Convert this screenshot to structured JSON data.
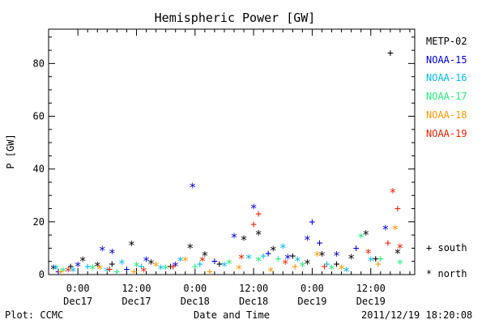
{
  "chart_data": {
    "type": "scatter",
    "title": "Hemispheric Power [GW]",
    "xlabel": "Date and Time",
    "ylabel": "P [GW]",
    "xlim": [
      "2011-12-16 18:00",
      "2011-12-19 21:00"
    ],
    "ylim": [
      0,
      93
    ],
    "y_ticks": [
      0,
      20,
      40,
      60,
      80
    ],
    "x_ticks": [
      {
        "time": "2011-12-17 00:00",
        "top": "0:00",
        "bottom": "Dec17"
      },
      {
        "time": "2011-12-17 12:00",
        "top": "12:00",
        "bottom": "Dec17"
      },
      {
        "time": "2011-12-18 00:00",
        "top": "0:00",
        "bottom": "Dec18"
      },
      {
        "time": "2011-12-18 12:00",
        "top": "12:00",
        "bottom": "Dec18"
      },
      {
        "time": "2011-12-19 00:00",
        "top": "0:00",
        "bottom": "Dec19"
      },
      {
        "time": "2011-12-19 12:00",
        "top": "12:00",
        "bottom": "Dec19"
      }
    ],
    "grid": false,
    "legend_position": "right",
    "marker_legend": [
      {
        "marker": "+",
        "label": "south"
      },
      {
        "marker": "*",
        "label": "north"
      }
    ],
    "series": [
      {
        "name": "METP-02",
        "color": "#000000",
        "points": [
          {
            "x": "2011-12-16 19:00",
            "y": 2,
            "marker": "*"
          },
          {
            "x": "2011-12-16 22:30",
            "y": 3,
            "marker": "+"
          },
          {
            "x": "2011-12-17 01:00",
            "y": 5,
            "marker": "*"
          },
          {
            "x": "2011-12-17 04:00",
            "y": 3,
            "marker": "*"
          },
          {
            "x": "2011-12-17 07:00",
            "y": 4,
            "marker": "+"
          },
          {
            "x": "2011-12-17 11:00",
            "y": 11,
            "marker": "*"
          },
          {
            "x": "2011-12-17 15:00",
            "y": 4,
            "marker": "*"
          },
          {
            "x": "2011-12-17 19:00",
            "y": 3,
            "marker": "+"
          },
          {
            "x": "2011-12-17 23:00",
            "y": 10,
            "marker": "*"
          },
          {
            "x": "2011-12-18 02:00",
            "y": 7,
            "marker": "*"
          },
          {
            "x": "2011-12-18 05:00",
            "y": 4,
            "marker": "+"
          },
          {
            "x": "2011-12-18 10:00",
            "y": 13,
            "marker": "*"
          },
          {
            "x": "2011-12-18 13:00",
            "y": 15,
            "marker": "*"
          },
          {
            "x": "2011-12-18 16:00",
            "y": 9,
            "marker": "*"
          },
          {
            "x": "2011-12-18 20:00",
            "y": 7,
            "marker": "+"
          },
          {
            "x": "2011-12-18 23:00",
            "y": 4,
            "marker": "*"
          },
          {
            "x": "2011-12-19 02:00",
            "y": 7,
            "marker": "*"
          },
          {
            "x": "2011-12-19 05:00",
            "y": 4,
            "marker": "+"
          },
          {
            "x": "2011-12-19 08:00",
            "y": 6,
            "marker": "*"
          },
          {
            "x": "2011-12-19 11:00",
            "y": 15,
            "marker": "*"
          },
          {
            "x": "2011-12-19 13:00",
            "y": 6,
            "marker": "+"
          },
          {
            "x": "2011-12-19 16:00",
            "y": 84,
            "marker": "+"
          },
          {
            "x": "2011-12-19 17:30",
            "y": 8,
            "marker": "*"
          }
        ]
      },
      {
        "name": "NOAA-15",
        "color": "#0000dd",
        "points": [
          {
            "x": "2011-12-16 20:00",
            "y": 1,
            "marker": "+"
          },
          {
            "x": "2011-12-17 00:00",
            "y": 3,
            "marker": "*"
          },
          {
            "x": "2011-12-17 05:00",
            "y": 9,
            "marker": "*"
          },
          {
            "x": "2011-12-17 07:00",
            "y": 8,
            "marker": "*"
          },
          {
            "x": "2011-12-17 10:00",
            "y": 2,
            "marker": "+"
          },
          {
            "x": "2011-12-17 14:00",
            "y": 5,
            "marker": "*"
          },
          {
            "x": "2011-12-17 20:00",
            "y": 3,
            "marker": "*"
          },
          {
            "x": "2011-12-17 23:30",
            "y": 33,
            "marker": "*"
          },
          {
            "x": "2011-12-18 04:00",
            "y": 5,
            "marker": "+"
          },
          {
            "x": "2011-12-18 08:00",
            "y": 14,
            "marker": "*"
          },
          {
            "x": "2011-12-18 12:00",
            "y": 25,
            "marker": "*"
          },
          {
            "x": "2011-12-18 15:00",
            "y": 8,
            "marker": "+"
          },
          {
            "x": "2011-12-18 19:00",
            "y": 6,
            "marker": "*"
          },
          {
            "x": "2011-12-18 23:00",
            "y": 13,
            "marker": "*"
          },
          {
            "x": "2011-12-19 00:00",
            "y": 20,
            "marker": "+"
          },
          {
            "x": "2011-12-19 01:30",
            "y": 12,
            "marker": "+"
          },
          {
            "x": "2011-12-19 05:00",
            "y": 7,
            "marker": "*"
          },
          {
            "x": "2011-12-19 09:00",
            "y": 10,
            "marker": "+"
          },
          {
            "x": "2011-12-19 15:00",
            "y": 17,
            "marker": "*"
          }
        ]
      },
      {
        "name": "NOAA-16",
        "color": "#00bbee",
        "points": [
          {
            "x": "2011-12-16 19:30",
            "y": 2,
            "marker": "*"
          },
          {
            "x": "2011-12-16 23:00",
            "y": 1,
            "marker": "*"
          },
          {
            "x": "2011-12-17 02:00",
            "y": 3,
            "marker": "+"
          },
          {
            "x": "2011-12-17 06:00",
            "y": 1,
            "marker": "*"
          },
          {
            "x": "2011-12-17 09:00",
            "y": 4,
            "marker": "*"
          },
          {
            "x": "2011-12-17 13:00",
            "y": 3,
            "marker": "+"
          },
          {
            "x": "2011-12-17 17:00",
            "y": 2,
            "marker": "*"
          },
          {
            "x": "2011-12-17 21:00",
            "y": 5,
            "marker": "*"
          },
          {
            "x": "2011-12-18 01:00",
            "y": 4,
            "marker": "+"
          },
          {
            "x": "2011-12-18 06:00",
            "y": 3,
            "marker": "*"
          },
          {
            "x": "2011-12-18 11:00",
            "y": 6,
            "marker": "*"
          },
          {
            "x": "2011-12-18 14:00",
            "y": 7,
            "marker": "+"
          },
          {
            "x": "2011-12-18 18:00",
            "y": 10,
            "marker": "*"
          },
          {
            "x": "2011-12-18 21:00",
            "y": 5,
            "marker": "*"
          },
          {
            "x": "2011-12-19 03:00",
            "y": 4,
            "marker": "+"
          },
          {
            "x": "2011-12-19 07:00",
            "y": 1,
            "marker": "*"
          },
          {
            "x": "2011-12-19 12:00",
            "y": 5,
            "marker": "*"
          }
        ]
      },
      {
        "name": "NOAA-17",
        "color": "#22ee77",
        "points": [
          {
            "x": "2011-12-16 21:00",
            "y": 1,
            "marker": "*"
          },
          {
            "x": "2011-12-17 03:00",
            "y": 2,
            "marker": "*"
          },
          {
            "x": "2011-12-17 08:00",
            "y": 1,
            "marker": "+"
          },
          {
            "x": "2011-12-17 12:00",
            "y": 3,
            "marker": "*"
          },
          {
            "x": "2011-12-17 18:00",
            "y": 2,
            "marker": "*"
          },
          {
            "x": "2011-12-18 00:00",
            "y": 3,
            "marker": "+"
          },
          {
            "x": "2011-12-18 07:00",
            "y": 4,
            "marker": "*"
          },
          {
            "x": "2011-12-18 13:00",
            "y": 5,
            "marker": "*"
          },
          {
            "x": "2011-12-18 17:00",
            "y": 6,
            "marker": "+"
          },
          {
            "x": "2011-12-18 22:00",
            "y": 3,
            "marker": "*"
          },
          {
            "x": "2011-12-19 04:00",
            "y": 2,
            "marker": "*"
          },
          {
            "x": "2011-12-19 10:00",
            "y": 14,
            "marker": "*"
          },
          {
            "x": "2011-12-19 14:00",
            "y": 6,
            "marker": "+"
          },
          {
            "x": "2011-12-19 18:00",
            "y": 4,
            "marker": "*"
          }
        ]
      },
      {
        "name": "NOAA-18",
        "color": "#ff9900",
        "points": [
          {
            "x": "2011-12-16 20:30",
            "y": 1,
            "marker": "+"
          },
          {
            "x": "2011-12-17 04:30",
            "y": 2,
            "marker": "*"
          },
          {
            "x": "2011-12-17 11:30",
            "y": 1,
            "marker": "+"
          },
          {
            "x": "2011-12-17 16:00",
            "y": 3,
            "marker": "*"
          },
          {
            "x": "2011-12-17 22:00",
            "y": 5,
            "marker": "*"
          },
          {
            "x": "2011-12-18 03:00",
            "y": 1,
            "marker": "+"
          },
          {
            "x": "2011-12-18 09:00",
            "y": 2,
            "marker": "*"
          },
          {
            "x": "2011-12-18 15:30",
            "y": 1,
            "marker": "*"
          },
          {
            "x": "2011-12-18 20:30",
            "y": 3,
            "marker": "+"
          },
          {
            "x": "2011-12-19 01:00",
            "y": 7,
            "marker": "*"
          },
          {
            "x": "2011-12-19 06:00",
            "y": 2,
            "marker": "*"
          },
          {
            "x": "2011-12-19 13:30",
            "y": 4,
            "marker": "+"
          },
          {
            "x": "2011-12-19 17:00",
            "y": 17,
            "marker": "*"
          }
        ]
      },
      {
        "name": "NOAA-19",
        "color": "#ee2200",
        "points": [
          {
            "x": "2011-12-16 22:00",
            "y": 1,
            "marker": "*"
          },
          {
            "x": "2011-12-17 06:30",
            "y": 2,
            "marker": "+"
          },
          {
            "x": "2011-12-17 13:30",
            "y": 1,
            "marker": "*"
          },
          {
            "x": "2011-12-17 19:30",
            "y": 3,
            "marker": "+"
          },
          {
            "x": "2011-12-18 01:30",
            "y": 5,
            "marker": "*"
          },
          {
            "x": "2011-12-18 09:30",
            "y": 6,
            "marker": "*"
          },
          {
            "x": "2011-12-18 12:00",
            "y": 19,
            "marker": "+"
          },
          {
            "x": "2011-12-18 13:00",
            "y": 23,
            "marker": "+"
          },
          {
            "x": "2011-12-18 18:30",
            "y": 4,
            "marker": "*"
          },
          {
            "x": "2011-12-19 02:30",
            "y": 3,
            "marker": "+"
          },
          {
            "x": "2011-12-19 11:30",
            "y": 8,
            "marker": "*"
          },
          {
            "x": "2011-12-19 15:30",
            "y": 12,
            "marker": "+"
          },
          {
            "x": "2011-12-19 16:30",
            "y": 31,
            "marker": "*"
          },
          {
            "x": "2011-12-19 17:30",
            "y": 25,
            "marker": "+"
          },
          {
            "x": "2011-12-19 18:00",
            "y": 10,
            "marker": "*"
          }
        ]
      }
    ]
  },
  "footer": {
    "plot_credit": "Plot: CCMC",
    "timestamp": "2011/12/19 18:20:08"
  }
}
